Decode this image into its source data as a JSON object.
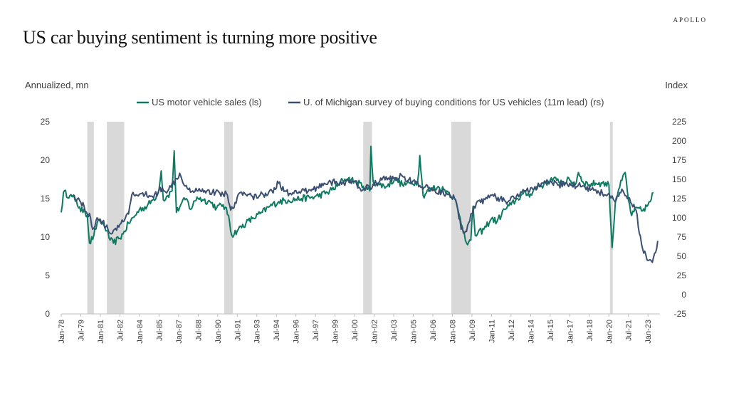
{
  "brand": "APOLLO",
  "title": "US car buying sentiment is turning more positive",
  "chart_data": {
    "type": "line",
    "ylabel_left": "Annualized, mn",
    "ylabel_right": "Index",
    "ylim_left": [
      0,
      25
    ],
    "ylim_right": [
      -25,
      225
    ],
    "yticks_left": [
      0,
      5,
      10,
      15,
      20,
      25
    ],
    "yticks_right": [
      -25,
      0,
      25,
      50,
      75,
      100,
      125,
      150,
      175,
      200,
      225
    ],
    "xlim": [
      "1978-01",
      "2023-12"
    ],
    "xtick_labels": [
      "Jan-78",
      "Jul-79",
      "Jan-81",
      "Jul-82",
      "Jan-84",
      "Jul-85",
      "Jan-87",
      "Jul-88",
      "Jan-90",
      "Jul-91",
      "Jan-93",
      "Jul-94",
      "Jan-96",
      "Jul-97",
      "Jan-99",
      "Jul-00",
      "Jan-02",
      "Jul-03",
      "Jan-05",
      "Jul-06",
      "Jan-08",
      "Jul-09",
      "Jan-11",
      "Jul-12",
      "Jan-14",
      "Jul-15",
      "Jan-17",
      "Jul-18",
      "Jan-20",
      "Jul-21",
      "Jan-23"
    ],
    "legend_position": "top",
    "grid": false,
    "recessions": [
      [
        "1980-01",
        "1980-07"
      ],
      [
        "1981-07",
        "1982-11"
      ],
      [
        "1990-07",
        "1991-03"
      ],
      [
        "2001-03",
        "2001-11"
      ],
      [
        "2007-12",
        "2009-06"
      ],
      [
        "2020-02",
        "2020-04"
      ]
    ],
    "series": [
      {
        "name": "US motor vehicle sales (ls)",
        "axis": "left",
        "color": "#0e7a62",
        "points": [
          [
            "1978-01",
            13.2
          ],
          [
            "1978-03",
            15.8
          ],
          [
            "1978-09",
            15.4
          ],
          [
            "1979-03",
            14.7
          ],
          [
            "1979-07",
            13.3
          ],
          [
            "1979-10",
            13.6
          ],
          [
            "1980-01",
            12.8
          ],
          [
            "1980-03",
            9.2
          ],
          [
            "1980-07",
            10.2
          ],
          [
            "1980-10",
            11.8
          ],
          [
            "1981-01",
            12.0
          ],
          [
            "1981-04",
            11.6
          ],
          [
            "1981-07",
            10.8
          ],
          [
            "1981-10",
            9.6
          ],
          [
            "1982-01",
            9.2
          ],
          [
            "1982-06",
            9.8
          ],
          [
            "1982-10",
            10.4
          ],
          [
            "1983-03",
            11.8
          ],
          [
            "1983-08",
            12.6
          ],
          [
            "1984-01",
            13.6
          ],
          [
            "1984-08",
            14.0
          ],
          [
            "1985-01",
            14.8
          ],
          [
            "1985-06",
            15.6
          ],
          [
            "1985-09",
            18.6
          ],
          [
            "1985-11",
            14.8
          ],
          [
            "1986-03",
            15.4
          ],
          [
            "1986-07",
            16.0
          ],
          [
            "1986-09",
            21.2
          ],
          [
            "1986-11",
            13.2
          ],
          [
            "1987-03",
            14.2
          ],
          [
            "1987-08",
            15.0
          ],
          [
            "1987-12",
            13.6
          ],
          [
            "1988-06",
            15.2
          ],
          [
            "1988-12",
            14.8
          ],
          [
            "1989-06",
            14.6
          ],
          [
            "1989-12",
            13.8
          ],
          [
            "1990-06",
            14.2
          ],
          [
            "1990-11",
            12.8
          ],
          [
            "1991-02",
            10.2
          ],
          [
            "1991-08",
            11.0
          ],
          [
            "1992-03",
            11.8
          ],
          [
            "1992-09",
            12.4
          ],
          [
            "1993-06",
            13.2
          ],
          [
            "1994-01",
            14.0
          ],
          [
            "1994-09",
            14.6
          ],
          [
            "1995-06",
            14.8
          ],
          [
            "1996-06",
            15.0
          ],
          [
            "1997-06",
            15.2
          ],
          [
            "1998-06",
            15.8
          ],
          [
            "1999-03",
            16.6
          ],
          [
            "1999-08",
            17.4
          ],
          [
            "2000-01",
            17.6
          ],
          [
            "2000-08",
            17.2
          ],
          [
            "2001-03",
            16.6
          ],
          [
            "2001-09",
            16.0
          ],
          [
            "2001-10",
            21.8
          ],
          [
            "2001-12",
            17.2
          ],
          [
            "2002-06",
            16.8
          ],
          [
            "2003-01",
            16.6
          ],
          [
            "2003-08",
            17.6
          ],
          [
            "2004-03",
            16.8
          ],
          [
            "2004-10",
            17.0
          ],
          [
            "2005-05",
            17.2
          ],
          [
            "2005-07",
            20.6
          ],
          [
            "2005-10",
            15.4
          ],
          [
            "2006-06",
            16.4
          ],
          [
            "2007-01",
            16.4
          ],
          [
            "2007-08",
            16.0
          ],
          [
            "2008-03",
            15.0
          ],
          [
            "2008-07",
            13.0
          ],
          [
            "2008-12",
            10.4
          ],
          [
            "2009-03",
            9.0
          ],
          [
            "2009-06",
            9.6
          ],
          [
            "2009-08",
            14.0
          ],
          [
            "2009-10",
            10.2
          ],
          [
            "2010-06",
            11.0
          ],
          [
            "2011-01",
            12.4
          ],
          [
            "2011-06",
            12.0
          ],
          [
            "2012-01",
            13.6
          ],
          [
            "2012-07",
            14.2
          ],
          [
            "2013-01",
            15.0
          ],
          [
            "2013-06",
            15.6
          ],
          [
            "2014-01",
            15.6
          ],
          [
            "2014-07",
            16.6
          ],
          [
            "2015-01",
            16.8
          ],
          [
            "2015-07",
            17.4
          ],
          [
            "2016-01",
            17.4
          ],
          [
            "2016-07",
            17.2
          ],
          [
            "2017-01",
            17.4
          ],
          [
            "2017-06",
            16.8
          ],
          [
            "2017-09",
            18.4
          ],
          [
            "2018-01",
            17.2
          ],
          [
            "2018-07",
            16.8
          ],
          [
            "2019-01",
            17.0
          ],
          [
            "2019-07",
            17.0
          ],
          [
            "2020-01",
            16.8
          ],
          [
            "2020-04",
            8.6
          ],
          [
            "2020-07",
            14.6
          ],
          [
            "2020-10",
            16.2
          ],
          [
            "2021-04",
            18.4
          ],
          [
            "2021-07",
            14.8
          ],
          [
            "2021-10",
            12.8
          ],
          [
            "2022-03",
            13.8
          ],
          [
            "2022-07",
            13.4
          ],
          [
            "2022-12",
            14.0
          ],
          [
            "2023-03",
            14.6
          ],
          [
            "2023-06",
            15.8
          ]
        ]
      },
      {
        "name": "U. of Michigan survey of buying conditions for US vehicles (11m lead) (rs)",
        "axis": "right",
        "color": "#3b4f73",
        "points": [
          [
            "1978-12",
            130
          ],
          [
            "1979-04",
            125
          ],
          [
            "1979-07",
            120
          ],
          [
            "1979-10",
            115
          ],
          [
            "1980-01",
            105
          ],
          [
            "1980-04",
            100
          ],
          [
            "1980-06",
            85
          ],
          [
            "1980-10",
            100
          ],
          [
            "1981-03",
            95
          ],
          [
            "1981-06",
            88
          ],
          [
            "1981-10",
            80
          ],
          [
            "1982-02",
            85
          ],
          [
            "1982-06",
            88
          ],
          [
            "1982-10",
            95
          ],
          [
            "1983-03",
            105
          ],
          [
            "1983-06",
            130
          ],
          [
            "1983-10",
            130
          ],
          [
            "1984-06",
            130
          ],
          [
            "1985-01",
            128
          ],
          [
            "1985-06",
            132
          ],
          [
            "1985-10",
            140
          ],
          [
            "1986-03",
            135
          ],
          [
            "1986-06",
            140
          ],
          [
            "1986-10",
            150
          ],
          [
            "1987-02",
            158
          ],
          [
            "1987-04",
            150
          ],
          [
            "1987-08",
            142
          ],
          [
            "1988-02",
            135
          ],
          [
            "1988-08",
            138
          ],
          [
            "1989-03",
            135
          ],
          [
            "1989-08",
            133
          ],
          [
            "1990-03",
            132
          ],
          [
            "1990-09",
            132
          ],
          [
            "1991-01",
            110
          ],
          [
            "1991-05",
            120
          ],
          [
            "1991-09",
            132
          ],
          [
            "1992-03",
            130
          ],
          [
            "1992-09",
            128
          ],
          [
            "1993-03",
            128
          ],
          [
            "1993-09",
            132
          ],
          [
            "1994-03",
            135
          ],
          [
            "1994-09",
            145
          ],
          [
            "1995-03",
            135
          ],
          [
            "1995-09",
            130
          ],
          [
            "1996-03",
            132
          ],
          [
            "1996-09",
            135
          ],
          [
            "1997-03",
            135
          ],
          [
            "1997-09",
            140
          ],
          [
            "1998-03",
            145
          ],
          [
            "1998-09",
            147
          ],
          [
            "1999-03",
            145
          ],
          [
            "1999-09",
            145
          ],
          [
            "2000-03",
            148
          ],
          [
            "2000-09",
            143
          ],
          [
            "2001-03",
            137
          ],
          [
            "2001-09",
            140
          ],
          [
            "2002-03",
            145
          ],
          [
            "2002-09",
            152
          ],
          [
            "2003-03",
            150
          ],
          [
            "2003-09",
            152
          ],
          [
            "2004-03",
            154
          ],
          [
            "2004-09",
            150
          ],
          [
            "2005-03",
            145
          ],
          [
            "2005-09",
            140
          ],
          [
            "2006-03",
            138
          ],
          [
            "2006-09",
            135
          ],
          [
            "2007-03",
            133
          ],
          [
            "2007-09",
            130
          ],
          [
            "2008-03",
            125
          ],
          [
            "2008-06",
            110
          ],
          [
            "2008-09",
            85
          ],
          [
            "2008-12",
            80
          ],
          [
            "2009-03",
            90
          ],
          [
            "2009-06",
            105
          ],
          [
            "2009-09",
            115
          ],
          [
            "2010-03",
            120
          ],
          [
            "2010-09",
            125
          ],
          [
            "2011-03",
            128
          ],
          [
            "2011-09",
            125
          ],
          [
            "2012-03",
            118
          ],
          [
            "2012-09",
            128
          ],
          [
            "2013-03",
            130
          ],
          [
            "2013-09",
            135
          ],
          [
            "2014-03",
            137
          ],
          [
            "2014-09",
            142
          ],
          [
            "2015-03",
            145
          ],
          [
            "2015-09",
            145
          ],
          [
            "2016-03",
            143
          ],
          [
            "2016-09",
            145
          ],
          [
            "2017-03",
            142
          ],
          [
            "2017-09",
            143
          ],
          [
            "2018-03",
            140
          ],
          [
            "2018-09",
            137
          ],
          [
            "2019-03",
            135
          ],
          [
            "2019-09",
            130
          ],
          [
            "2020-02",
            128
          ],
          [
            "2020-06",
            122
          ],
          [
            "2020-10",
            128
          ],
          [
            "2021-02",
            135
          ],
          [
            "2021-06",
            125
          ],
          [
            "2021-10",
            118
          ],
          [
            "2022-02",
            110
          ],
          [
            "2022-05",
            80
          ],
          [
            "2022-08",
            60
          ],
          [
            "2022-11",
            52
          ],
          [
            "2023-02",
            45
          ],
          [
            "2023-05",
            42
          ],
          [
            "2023-08",
            55
          ],
          [
            "2023-10",
            70
          ]
        ]
      }
    ]
  }
}
